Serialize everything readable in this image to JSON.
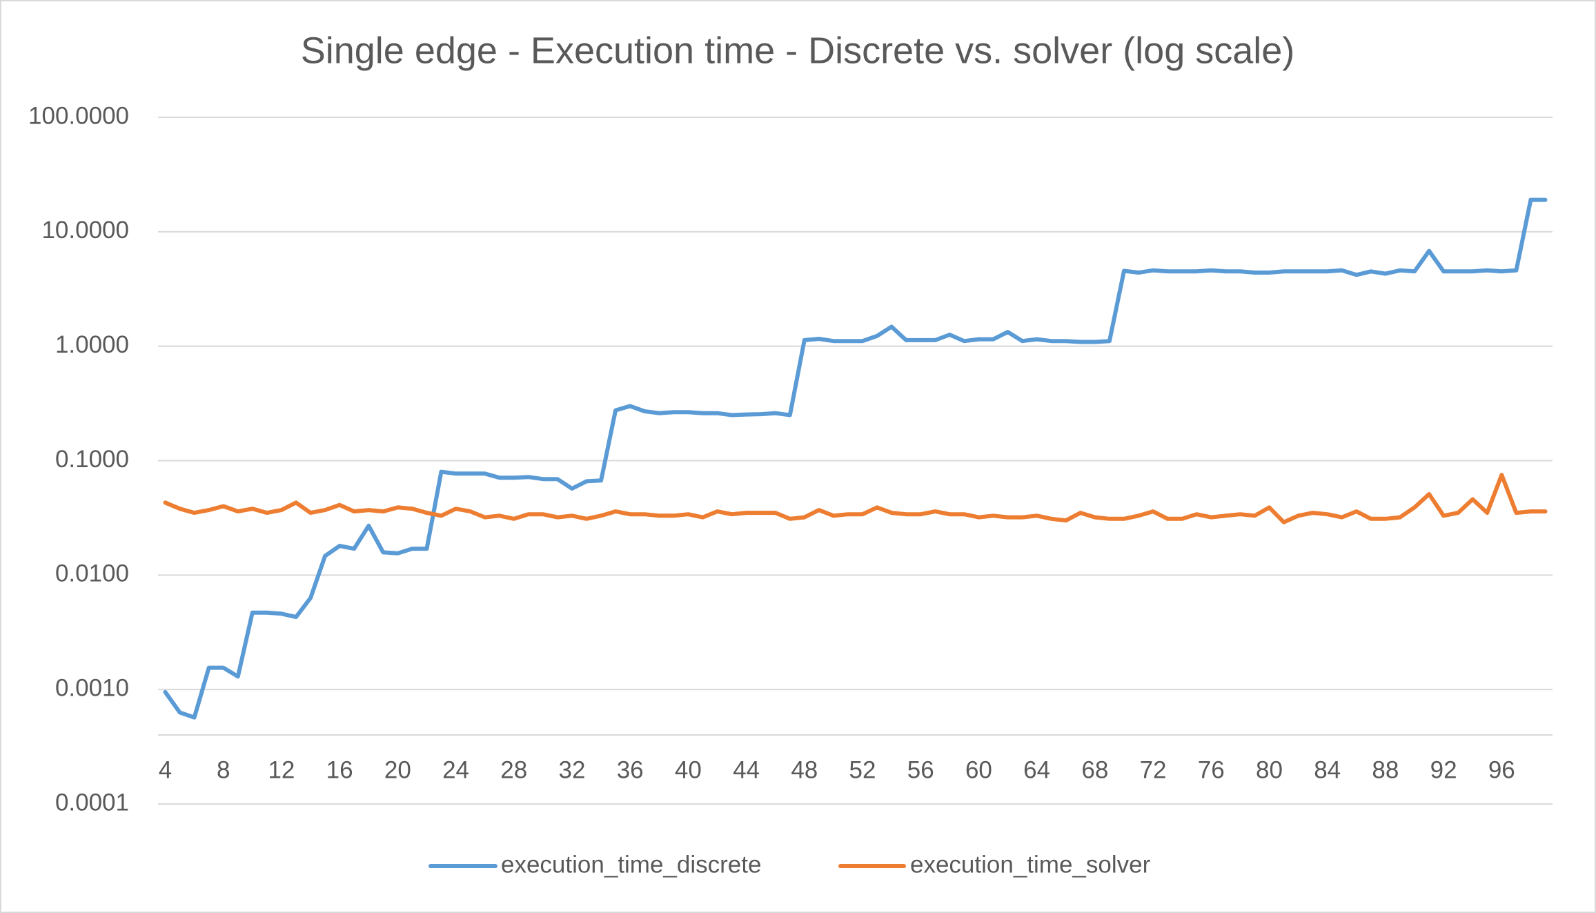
{
  "chart_data": {
    "type": "line",
    "title": "Single edge - Execution time - Discrete vs. solver (log scale)",
    "categories": [
      4,
      null,
      null,
      null,
      8,
      null,
      null,
      null,
      12,
      null,
      null,
      null,
      16,
      null,
      null,
      null,
      20,
      null,
      null,
      null,
      24,
      null,
      null,
      null,
      28,
      null,
      null,
      null,
      32,
      null,
      null,
      null,
      36,
      null,
      null,
      null,
      40,
      null,
      null,
      null,
      44,
      null,
      null,
      null,
      48,
      null,
      null,
      null,
      52,
      null,
      null,
      null,
      56,
      null,
      null,
      null,
      60,
      null,
      null,
      null,
      64,
      null,
      null,
      null,
      68,
      null,
      null,
      null,
      72,
      null,
      null,
      null,
      76,
      null,
      null,
      null,
      80,
      null,
      null,
      null,
      84,
      null,
      null,
      null,
      88,
      null,
      null,
      null,
      92,
      null,
      null,
      null,
      96,
      null,
      null,
      null
    ],
    "series": [
      {
        "name": "execution_time_discrete",
        "color": "#5b9bd5",
        "values": [
          0.00095,
          0.00063,
          0.00057,
          0.00155,
          0.00155,
          0.0013,
          0.0047,
          0.0047,
          0.0046,
          0.0043,
          0.0063,
          0.0147,
          0.018,
          0.017,
          0.027,
          0.0158,
          0.0155,
          0.017,
          0.017,
          0.08,
          0.077,
          0.077,
          0.077,
          0.071,
          0.071,
          0.072,
          0.069,
          0.069,
          0.057,
          0.066,
          0.067,
          0.275,
          0.3,
          0.27,
          0.26,
          0.265,
          0.265,
          0.26,
          0.26,
          0.25,
          0.253,
          0.255,
          0.26,
          0.25,
          1.13,
          1.16,
          1.11,
          1.11,
          1.11,
          1.23,
          1.48,
          1.13,
          1.13,
          1.13,
          1.26,
          1.11,
          1.15,
          1.15,
          1.33,
          1.11,
          1.15,
          1.11,
          1.11,
          1.09,
          1.09,
          1.11,
          4.55,
          4.4,
          4.6,
          4.5,
          4.5,
          4.5,
          4.6,
          4.5,
          4.5,
          4.4,
          4.4,
          4.5,
          4.5,
          4.5,
          4.5,
          4.6,
          4.2,
          4.5,
          4.3,
          4.6,
          4.5,
          6.8,
          4.5,
          4.5,
          4.5,
          4.6,
          4.5,
          4.6,
          19,
          19
        ]
      },
      {
        "name": "execution_time_solver",
        "color": "#ed7d31",
        "values": [
          0.043,
          0.038,
          0.035,
          0.037,
          0.04,
          0.036,
          0.038,
          0.035,
          0.037,
          0.043,
          0.035,
          0.037,
          0.041,
          0.036,
          0.037,
          0.036,
          0.039,
          0.038,
          0.035,
          0.033,
          0.038,
          0.036,
          0.032,
          0.033,
          0.031,
          0.034,
          0.034,
          0.032,
          0.033,
          0.031,
          0.033,
          0.036,
          0.034,
          0.034,
          0.033,
          0.033,
          0.034,
          0.032,
          0.036,
          0.034,
          0.035,
          0.035,
          0.035,
          0.031,
          0.032,
          0.037,
          0.033,
          0.034,
          0.034,
          0.039,
          0.035,
          0.034,
          0.034,
          0.036,
          0.034,
          0.034,
          0.032,
          0.033,
          0.032,
          0.032,
          0.033,
          0.031,
          0.03,
          0.035,
          0.032,
          0.031,
          0.031,
          0.033,
          0.036,
          0.031,
          0.031,
          0.034,
          0.032,
          0.033,
          0.034,
          0.033,
          0.039,
          0.029,
          0.033,
          0.035,
          0.034,
          0.032,
          0.036,
          0.031,
          0.031,
          0.032,
          0.039,
          0.051,
          0.033,
          0.035,
          0.046,
          0.035,
          0.075,
          0.035,
          0.036,
          0.036
        ]
      }
    ],
    "ylim": [
      0.0001,
      100
    ],
    "yticks": [
      {
        "value": 0.0001,
        "label": "0.0001"
      },
      {
        "value": 0.001,
        "label": "0.0010"
      },
      {
        "value": 0.01,
        "label": "0.0100"
      },
      {
        "value": 0.1,
        "label": "0.1000"
      },
      {
        "value": 1,
        "label": "1.0000"
      },
      {
        "value": 10,
        "label": "10.0000"
      },
      {
        "value": 100,
        "label": "100.0000"
      }
    ],
    "log_scale": true,
    "grid": true,
    "legend_position": "bottom"
  }
}
